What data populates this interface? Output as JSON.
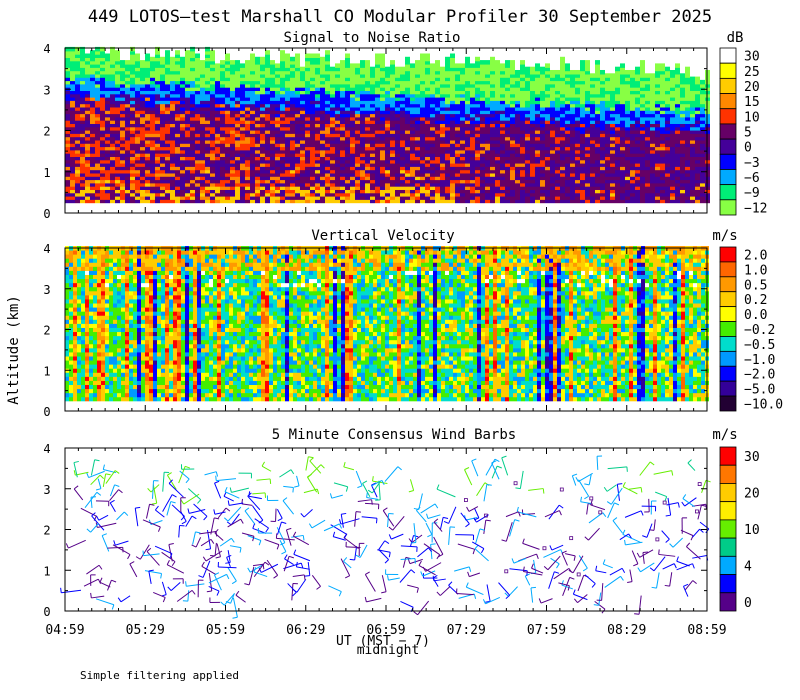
{
  "figure": {
    "title": "449 LOTOS—test Marshall CO Modular Profiler 30 September 2025",
    "ylabel": "Altitude (km)",
    "xlabel": "UT (MST − 7)",
    "midnight_label": "midnight",
    "footnote": "Simple filtering applied"
  },
  "chart_data": [
    {
      "type": "heatmap",
      "title": "Signal to Noise Ratio",
      "unit": "dB",
      "ylim": [
        0,
        4
      ],
      "yticks": [
        "0",
        "1",
        "2",
        "3",
        "4"
      ],
      "x": [
        "04:59",
        "05:29",
        "05:59",
        "06:29",
        "06:59",
        "07:29",
        "07:59",
        "08:29",
        "08:59"
      ],
      "color_scale": [
        {
          "label": "30",
          "color": "#ffffff"
        },
        {
          "label": "25",
          "color": "#ffff00"
        },
        {
          "label": "20",
          "color": "#ffcc00"
        },
        {
          "label": "15",
          "color": "#ff8800"
        },
        {
          "label": "10",
          "color": "#ff3300"
        },
        {
          "label": "5",
          "color": "#660066"
        },
        {
          "label": "0",
          "color": "#440099"
        },
        {
          "label": "−3",
          "color": "#0000ff"
        },
        {
          "label": "−6",
          "color": "#00aaff"
        },
        {
          "label": "−9",
          "color": "#00ee77"
        },
        {
          "label": "−12",
          "color": "#88ff44"
        }
      ]
    },
    {
      "type": "heatmap",
      "title": "Vertical Velocity",
      "unit": "m/s",
      "ylim": [
        0,
        4
      ],
      "yticks": [
        "0",
        "1",
        "2",
        "3",
        "4"
      ],
      "x": [
        "04:59",
        "05:29",
        "05:59",
        "06:29",
        "06:59",
        "07:29",
        "07:59",
        "08:29",
        "08:59"
      ],
      "color_scale": [
        {
          "label": "2.0",
          "color": "#ff0000"
        },
        {
          "label": "1.0",
          "color": "#ff6600"
        },
        {
          "label": "0.5",
          "color": "#ff9900"
        },
        {
          "label": "0.2",
          "color": "#ffcc00"
        },
        {
          "label": "0.0",
          "color": "#ffff00"
        },
        {
          "label": "−0.2",
          "color": "#44ee00"
        },
        {
          "label": "−0.5",
          "color": "#00ddcc"
        },
        {
          "label": "−1.0",
          "color": "#0099ff"
        },
        {
          "label": "−2.0",
          "color": "#0000ff"
        },
        {
          "label": "−5.0",
          "color": "#330099"
        },
        {
          "label": "−10.0",
          "color": "#220033"
        }
      ]
    },
    {
      "type": "scatter",
      "title": "5 Minute Consensus Wind Barbs",
      "unit": "m/s",
      "ylim": [
        0,
        4
      ],
      "yticks": [
        "0",
        "1",
        "2",
        "3",
        "4"
      ],
      "x": [
        "04:59",
        "05:29",
        "05:59",
        "06:29",
        "06:59",
        "07:29",
        "07:59",
        "08:29",
        "08:59"
      ],
      "color_scale": [
        {
          "label": "30",
          "color": "#ff0000"
        },
        {
          "label": "",
          "color": "#ff7700"
        },
        {
          "label": "20",
          "color": "#ffcc00"
        },
        {
          "label": "",
          "color": "#ffee00"
        },
        {
          "label": "10",
          "color": "#66ee00"
        },
        {
          "label": "",
          "color": "#00cc88"
        },
        {
          "label": "4",
          "color": "#00aaff"
        },
        {
          "label": "",
          "color": "#0000ff"
        },
        {
          "label": "0",
          "color": "#550088"
        }
      ]
    }
  ]
}
